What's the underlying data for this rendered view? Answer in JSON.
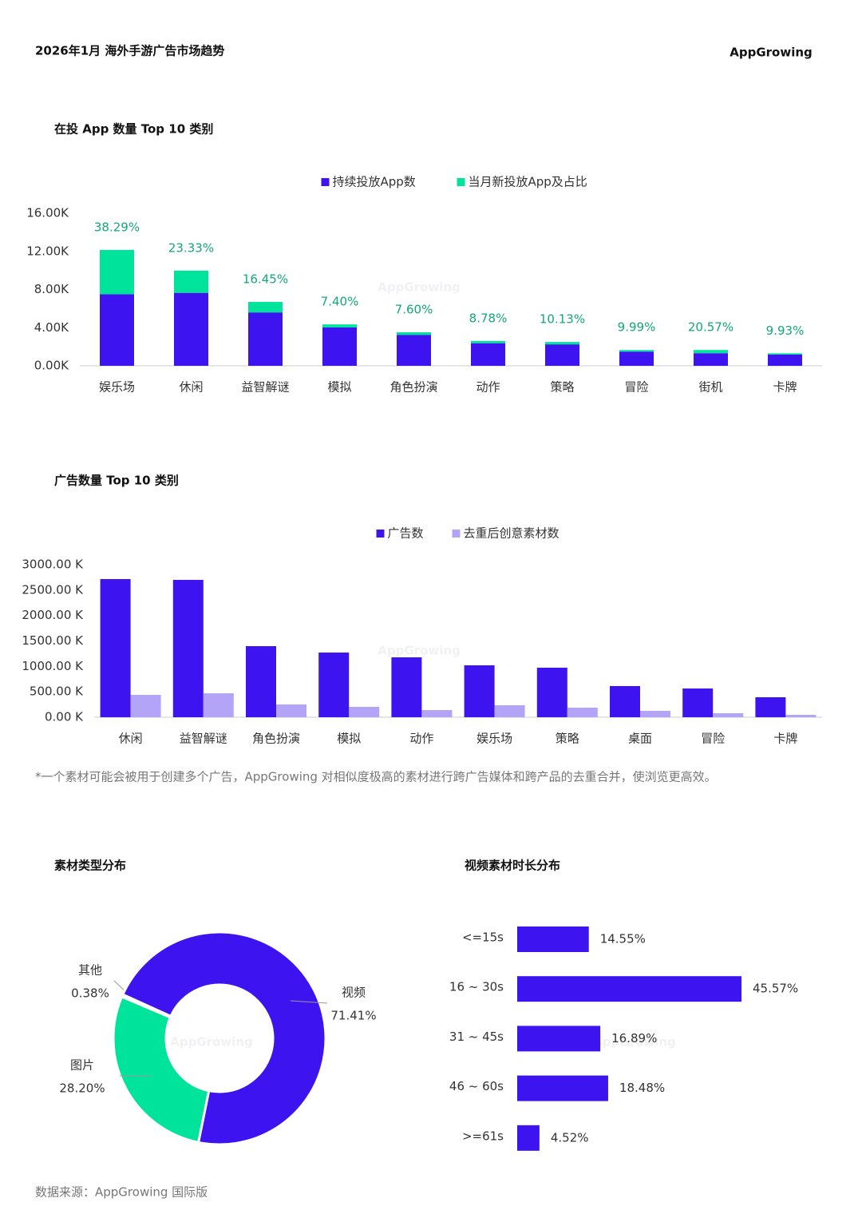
{
  "header": {
    "title": "2026年1月 海外手游广告市场趋势",
    "logo": "AppGrowing"
  },
  "watermark": "AppGrowing",
  "chart_data": [
    {
      "type": "bar",
      "stacked": true,
      "title": "在投 App 数量 Top 10 类别",
      "categories": [
        "娱乐场",
        "休闲",
        "益智解谜",
        "模拟",
        "角色扮演",
        "动作",
        "策略",
        "冒险",
        "街机",
        "卡牌"
      ],
      "series": [
        {
          "name": "持续投放App数",
          "color": "#3d14f0",
          "values": [
            7500,
            7650,
            5600,
            4020,
            3250,
            2370,
            2250,
            1490,
            1320,
            1180
          ]
        },
        {
          "name": "当月新投放App及占比",
          "color": "#00e39a",
          "values": [
            4650,
            2330,
            1100,
            320,
            270,
            230,
            250,
            165,
            340,
            130
          ]
        }
      ],
      "share_labels": [
        "38.29%",
        "23.33%",
        "16.45%",
        "7.40%",
        "7.60%",
        "8.78%",
        "10.13%",
        "9.99%",
        "20.57%",
        "9.93%"
      ],
      "ylim": [
        0,
        16000
      ],
      "yticks": [
        {
          "value": 0,
          "label": "0.00K"
        },
        {
          "value": 4000,
          "label": "4.00K"
        },
        {
          "value": 8000,
          "label": "8.00K"
        },
        {
          "value": 12000,
          "label": "12.00K"
        },
        {
          "value": 16000,
          "label": "16.00K"
        }
      ],
      "legend": "top"
    },
    {
      "type": "bar",
      "stacked": false,
      "title": "广告数量 Top 10 类别",
      "categories": [
        "休闲",
        "益智解谜",
        "角色扮演",
        "模拟",
        "动作",
        "娱乐场",
        "策略",
        "桌面",
        "冒险",
        "卡牌"
      ],
      "series": [
        {
          "name": "广告数",
          "color": "#3d14f0",
          "values": [
            2717,
            2701,
            1398,
            1272,
            1178,
            1021,
            974,
            613,
            565,
            393
          ]
        },
        {
          "name": "去重后创意素材数",
          "color": "#b3a4f7",
          "values": [
            440,
            471,
            251,
            204,
            141,
            236,
            188,
            126,
            79,
            47
          ]
        }
      ],
      "ylim": [
        0,
        3000
      ],
      "yticks": [
        {
          "value": 0,
          "label": "0.00 K"
        },
        {
          "value": 500,
          "label": "500.00 K"
        },
        {
          "value": 1000,
          "label": "1000.00 K"
        },
        {
          "value": 1500,
          "label": "1500.00 K"
        },
        {
          "value": 2000,
          "label": "2000.00 K"
        },
        {
          "value": 2500,
          "label": "2500.00 K"
        },
        {
          "value": 3000,
          "label": "3000.00 K"
        }
      ],
      "legend": "top"
    },
    {
      "type": "pie",
      "donut": true,
      "title": "素材类型分布",
      "categories": [
        "其他",
        "视频",
        "图片"
      ],
      "values": [
        0.38,
        71.41,
        28.2
      ],
      "value_labels": [
        "0.38%",
        "71.41%",
        "28.20%"
      ],
      "colors": [
        "#d8d0fa",
        "#3d14f0",
        "#00e39a"
      ]
    },
    {
      "type": "bar",
      "orientation": "horizontal",
      "title": "视频素材时长分布",
      "categories": [
        "<=15s",
        "16 ~ 30s",
        "31 ~ 45s",
        "46 ~ 60s",
        ">=61s"
      ],
      "values": [
        14.55,
        45.57,
        16.89,
        18.48,
        4.52
      ],
      "value_labels": [
        "14.55%",
        "45.57%",
        "16.89%",
        "18.48%",
        "4.52%"
      ],
      "color": "#3d14f0"
    }
  ],
  "footnote": "*一个素材可能会被用于创建多个广告，AppGrowing 对相似度极高的素材进行跨广告媒体和跨产品的去重合并，使浏览更高效。",
  "source": "数据来源：AppGrowing 国际版"
}
